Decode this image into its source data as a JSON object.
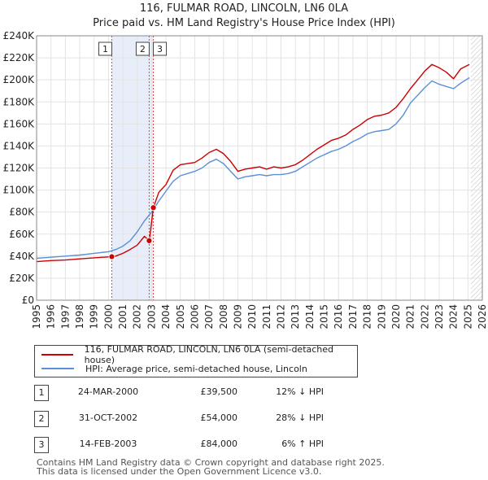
{
  "header": {
    "title_line1": "116, FULMAR ROAD, LINCOLN, LN6 0LA",
    "title_line2": "Price paid vs. HM Land Registry's House Price Index (HPI)"
  },
  "chart_data": {
    "type": "line",
    "title": "116, FULMAR ROAD, LINCOLN, LN6 0LA - Price paid vs. HM Land Registry's House Price Index (HPI)",
    "xlim": [
      1995,
      2026
    ],
    "ylim": [
      0,
      240000
    ],
    "y_ticks": [
      0,
      20000,
      40000,
      60000,
      80000,
      100000,
      120000,
      140000,
      160000,
      180000,
      200000,
      220000,
      240000
    ],
    "y_tick_labels": [
      "£0",
      "£20K",
      "£40K",
      "£60K",
      "£80K",
      "£100K",
      "£120K",
      "£140K",
      "£160K",
      "£180K",
      "£200K",
      "£220K",
      "£240K"
    ],
    "x_ticks": [
      1995,
      1996,
      1997,
      1998,
      1999,
      2000,
      2001,
      2002,
      2003,
      2004,
      2005,
      2006,
      2007,
      2008,
      2009,
      2010,
      2011,
      2012,
      2013,
      2014,
      2015,
      2016,
      2017,
      2018,
      2019,
      2020,
      2021,
      2022,
      2023,
      2024,
      2025,
      2026
    ],
    "x_tick_labels": [
      "1995",
      "1996",
      "1997",
      "1998",
      "1999",
      "2000",
      "2001",
      "2002",
      "2003",
      "2004",
      "2005",
      "2006",
      "2007",
      "2008",
      "2009",
      "2010",
      "2011",
      "2012",
      "2013",
      "2014",
      "2015",
      "2016",
      "2017",
      "2018",
      "2019",
      "2020",
      "2021",
      "2022",
      "2023",
      "2024",
      "2025",
      "2026"
    ],
    "grid": true,
    "shaded_ranges": [
      [
        2000.23,
        2003.12
      ]
    ],
    "hatched_from": 2025.2,
    "series": [
      {
        "name": "116, FULMAR ROAD, LINCOLN, LN6 0LA (semi-detached house)",
        "color": "#cc0000",
        "x": [
          1995,
          1996,
          1997,
          1998,
          1999,
          2000.23,
          2000.5,
          2001,
          2001.5,
          2002,
          2002.5,
          2002.83,
          2002.84,
          2003.12,
          2003.5,
          2004,
          2004.5,
          2005,
          2005.5,
          2006,
          2006.5,
          2007,
          2007.5,
          2008,
          2008.5,
          2009,
          2009.5,
          2010,
          2010.5,
          2011,
          2011.5,
          2012,
          2012.5,
          2013,
          2013.5,
          2014,
          2014.5,
          2015,
          2015.5,
          2016,
          2016.5,
          2017,
          2017.5,
          2018,
          2018.5,
          2019,
          2019.5,
          2020,
          2020.5,
          2021,
          2021.5,
          2022,
          2022.5,
          2023,
          2023.5,
          2024,
          2024.5,
          2025.1
        ],
        "y": [
          35000,
          36000,
          36500,
          37500,
          38500,
          39500,
          40000,
          42500,
          46000,
          50000,
          58000,
          54000,
          54000,
          84000,
          98000,
          105000,
          118000,
          123000,
          124000,
          125000,
          129000,
          134000,
          137000,
          133000,
          126000,
          117000,
          119000,
          120000,
          121000,
          119000,
          121000,
          120000,
          121000,
          123000,
          127000,
          132000,
          137000,
          141000,
          145000,
          147000,
          150000,
          155000,
          159000,
          164000,
          167000,
          168000,
          170000,
          175000,
          183000,
          192000,
          200000,
          208000,
          214000,
          211000,
          207000,
          201000,
          210000,
          214000
        ]
      },
      {
        "name": "HPI: Average price, semi-detached house, Lincoln",
        "color": "#5b8fd6",
        "x": [
          1995,
          1996,
          1997,
          1998,
          1999,
          2000,
          2000.5,
          2001,
          2001.5,
          2002,
          2002.5,
          2003,
          2003.5,
          2004,
          2004.5,
          2005,
          2005.5,
          2006,
          2006.5,
          2007,
          2007.5,
          2008,
          2008.5,
          2009,
          2009.5,
          2010,
          2010.5,
          2011,
          2011.5,
          2012,
          2012.5,
          2013,
          2013.5,
          2014,
          2014.5,
          2015,
          2015.5,
          2016,
          2016.5,
          2017,
          2017.5,
          2018,
          2018.5,
          2019,
          2019.5,
          2020,
          2020.5,
          2021,
          2021.5,
          2022,
          2022.5,
          2023,
          2023.5,
          2024,
          2024.5,
          2025.1
        ],
        "y": [
          38000,
          39000,
          40000,
          41000,
          42500,
          44000,
          46000,
          49000,
          54000,
          62000,
          72000,
          80000,
          90000,
          99000,
          108000,
          113000,
          115000,
          117000,
          120000,
          125000,
          128000,
          124000,
          117000,
          110000,
          112000,
          113000,
          114000,
          113000,
          114000,
          114000,
          115000,
          117000,
          121000,
          125000,
          129000,
          132000,
          135000,
          137000,
          140000,
          144000,
          147000,
          151000,
          153000,
          154000,
          155000,
          160000,
          168000,
          179000,
          186000,
          193000,
          199000,
          196000,
          194000,
          192000,
          197000,
          202000
        ]
      }
    ],
    "markers": [
      {
        "label": "1",
        "x": 2000.23,
        "y": 39500,
        "flag_side": "left"
      },
      {
        "label": "2",
        "x": 2002.83,
        "y": 54000,
        "flag_side": "left"
      },
      {
        "label": "3",
        "x": 2003.12,
        "y": 84000,
        "flag_side": "right"
      }
    ]
  },
  "legend": {
    "property_label": "116, FULMAR ROAD, LINCOLN, LN6 0LA (semi-detached house)",
    "hpi_label": "HPI: Average price, semi-detached house, Lincoln",
    "property_color": "#cc0000",
    "hpi_color": "#5b8fd6"
  },
  "transactions": [
    {
      "num": "1",
      "date": "24-MAR-2000",
      "price": "£39,500",
      "hpi": "12% ↓ HPI"
    },
    {
      "num": "2",
      "date": "31-OCT-2002",
      "price": "£54,000",
      "hpi": "28% ↓ HPI"
    },
    {
      "num": "3",
      "date": "14-FEB-2003",
      "price": "£84,000",
      "hpi": "6% ↑ HPI"
    }
  ],
  "footer": {
    "line1": "Contains HM Land Registry data © Crown copyright and database right 2025.",
    "line2": "This data is licensed under the Open Government Licence v3.0."
  }
}
